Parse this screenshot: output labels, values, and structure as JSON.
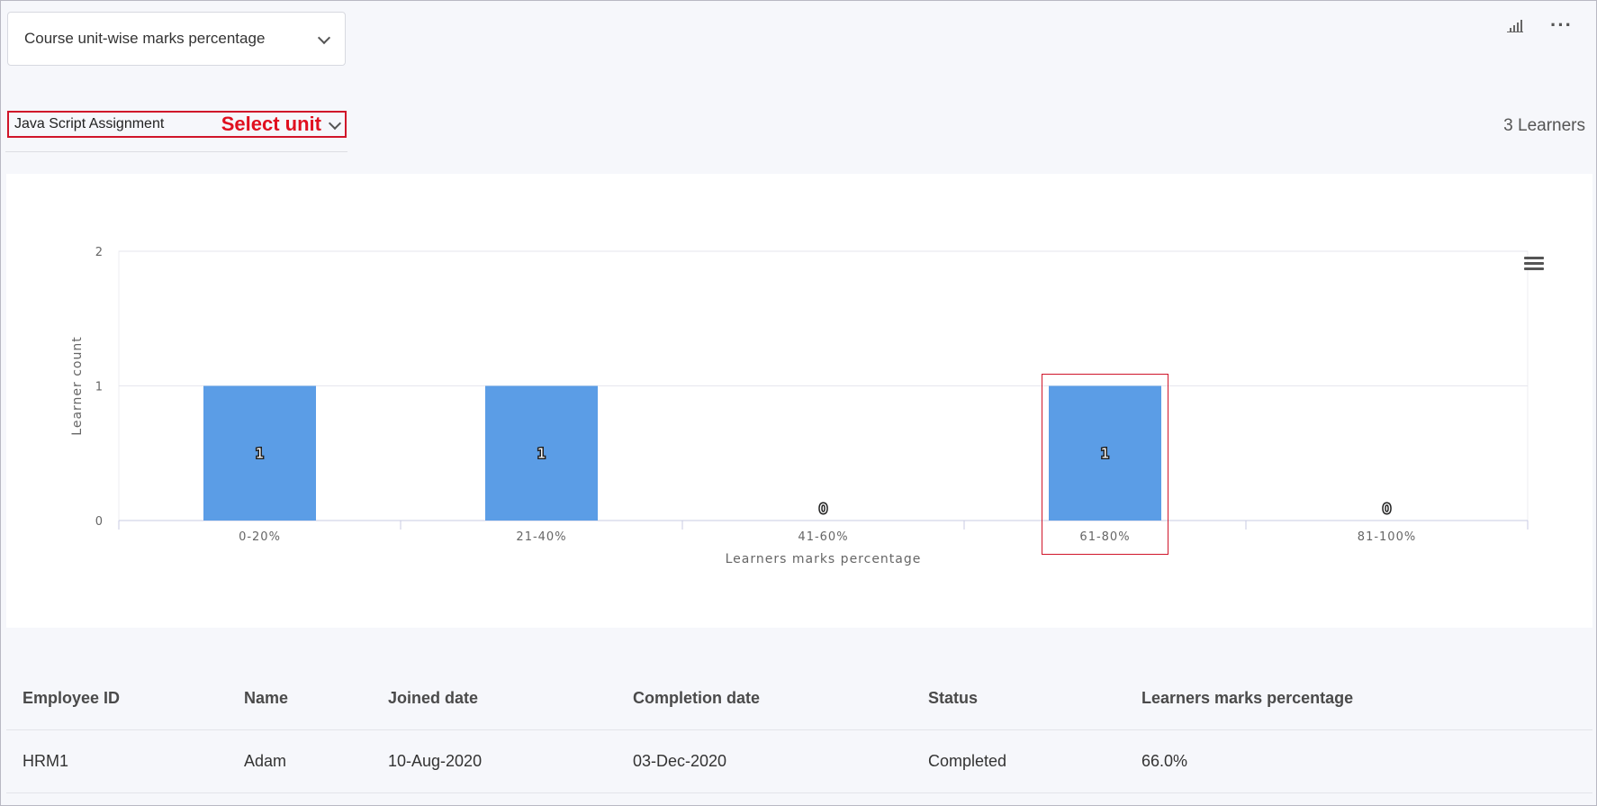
{
  "report_selector": {
    "label": "Course unit-wise marks percentage"
  },
  "unit_selector": {
    "value": "Java Script Assignment",
    "hint": "Select unit"
  },
  "learners_count": "3 Learners",
  "icons": [
    "bar-chart-icon",
    "more-icon",
    "chevron-down-icon",
    "hamburger-menu-icon"
  ],
  "colors": {
    "bar": "#5b9de6",
    "highlight": "#d0152a",
    "hint": "#e0101f"
  },
  "chart_data": {
    "type": "bar",
    "categories": [
      "0-20%",
      "21-40%",
      "41-60%",
      "61-80%",
      "81-100%"
    ],
    "values": [
      1,
      1,
      0,
      1,
      0
    ],
    "xlabel": "Learners marks percentage",
    "ylabel": "Learner count",
    "ylim": [
      0,
      2
    ],
    "yticks": [
      "0",
      "1",
      "2"
    ],
    "grid": true,
    "data_labels": true,
    "highlighted_category": "61-80%"
  },
  "table": {
    "headers": [
      "Employee ID",
      "Name",
      "Joined date",
      "Completion date",
      "Status",
      "Learners marks percentage"
    ],
    "rows": [
      [
        "HRM1",
        "Adam",
        "10-Aug-2020",
        "03-Dec-2020",
        "Completed",
        "66.0%"
      ]
    ]
  }
}
